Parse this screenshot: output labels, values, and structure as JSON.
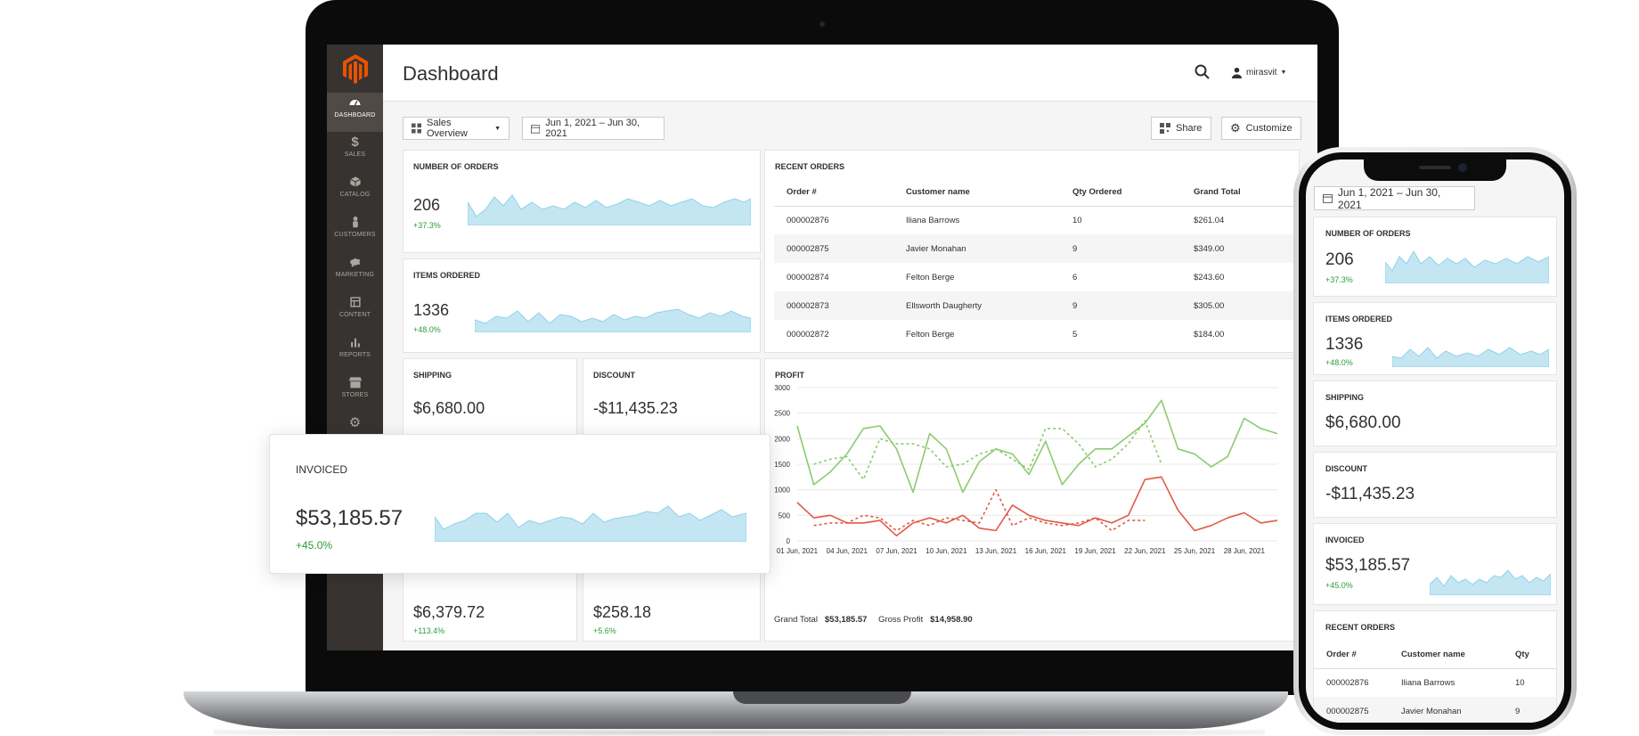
{
  "dashboard": {
    "page_title": "Dashboard",
    "user": "mirasvit",
    "nav": [
      {
        "label": "DASHBOARD",
        "icon": "dashboard-icon"
      },
      {
        "label": "SALES",
        "icon": "dollar-icon"
      },
      {
        "label": "CATALOG",
        "icon": "cube-icon"
      },
      {
        "label": "CUSTOMERS",
        "icon": "person-icon"
      },
      {
        "label": "MARKETING",
        "icon": "megaphone-icon"
      },
      {
        "label": "CONTENT",
        "icon": "layout-icon"
      },
      {
        "label": "REPORTS",
        "icon": "bar-chart-icon"
      },
      {
        "label": "STORES",
        "icon": "store-icon"
      }
    ],
    "toolbar": {
      "board_select": "Sales Overview",
      "date_range": "Jun 1, 2021 – Jun 30, 2021",
      "share_label": "Share",
      "customize_label": "Customize"
    },
    "widgets": {
      "orders": {
        "title": "NUMBER OF ORDERS",
        "value": "206",
        "delta": "+37.3%"
      },
      "items": {
        "title": "ITEMS ORDERED",
        "value": "1336",
        "delta": "+48.0%"
      },
      "shipping": {
        "title": "SHIPPING",
        "value": "$6,680.00"
      },
      "discount": {
        "title": "DISCOUNT",
        "value": "-$11,435.23"
      },
      "tax": {
        "value": "$6,379.72",
        "delta": "+113.4%"
      },
      "refunded": {
        "value": "$258.18",
        "delta": "+5.6%"
      },
      "invoiced": {
        "title": "INVOICED",
        "value": "$53,185.57",
        "delta": "+45.0%"
      }
    },
    "recent_orders": {
      "title": "RECENT ORDERS",
      "columns": [
        "Order #",
        "Customer name",
        "Qty Ordered",
        "Grand Total"
      ],
      "rows": [
        [
          "000002876",
          "Iliana Barrows",
          "10",
          "$261.04"
        ],
        [
          "000002875",
          "Javier Monahan",
          "9",
          "$349.00"
        ],
        [
          "000002874",
          "Felton Berge",
          "6",
          "$243.60"
        ],
        [
          "000002873",
          "Ellsworth Daugherty",
          "9",
          "$305.00"
        ],
        [
          "000002872",
          "Felton Berge",
          "5",
          "$184.00"
        ]
      ]
    },
    "profit": {
      "title": "PROFIT",
      "grand_total_label": "Grand Total",
      "grand_total_value": "$53,185.57",
      "gross_profit_label": "Gross Profit",
      "gross_profit_value": "$14,958.90"
    }
  },
  "phone": {
    "date_range": "Jun 1, 2021 – Jun 30, 2021",
    "orders": {
      "title": "NUMBER OF ORDERS",
      "value": "206",
      "delta": "+37.3%"
    },
    "items": {
      "title": "ITEMS ORDERED",
      "value": "1336",
      "delta": "+48.0%"
    },
    "shipping": {
      "title": "SHIPPING",
      "value": "$6,680.00"
    },
    "discount": {
      "title": "DISCOUNT",
      "value": "-$11,435.23"
    },
    "invoiced": {
      "title": "INVOICED",
      "value": "$53,185.57",
      "delta": "+45.0%"
    },
    "recent_orders": {
      "title": "RECENT ORDERS",
      "columns": [
        "Order #",
        "Customer name",
        "Qty"
      ],
      "rows": [
        [
          "000002876",
          "Iliana Barrows",
          "10"
        ],
        [
          "000002875",
          "Javier Monahan",
          "9"
        ]
      ]
    }
  },
  "colors": {
    "sidebar": "#373330",
    "sidebar_active": "#514943",
    "brand_orange": "#eb5202",
    "spark_fill": "#c4e6f3",
    "spark_line": "#8fd0ea",
    "positive": "#2d9c3a",
    "series_green": "#8ccb6e",
    "series_red": "#e05a47"
  },
  "chart_data": {
    "type": "line",
    "title": "PROFIT",
    "x": [
      "01 Jun, 2021",
      "02 Jun, 2021",
      "03 Jun, 2021",
      "04 Jun, 2021",
      "05 Jun, 2021",
      "06 Jun, 2021",
      "07 Jun, 2021",
      "08 Jun, 2021",
      "09 Jun, 2021",
      "10 Jun, 2021",
      "11 Jun, 2021",
      "12 Jun, 2021",
      "13 Jun, 2021",
      "14 Jun, 2021",
      "15 Jun, 2021",
      "16 Jun, 2021",
      "17 Jun, 2021",
      "18 Jun, 2021",
      "19 Jun, 2021",
      "20 Jun, 2021",
      "21 Jun, 2021",
      "22 Jun, 2021",
      "23 Jun, 2021",
      "24 Jun, 2021",
      "25 Jun, 2021",
      "26 Jun, 2021",
      "27 Jun, 2021",
      "28 Jun, 2021",
      "29 Jun, 2021",
      "30 Jun, 2021"
    ],
    "xticks": [
      "01 Jun, 2021",
      "04 Jun, 2021",
      "07 Jun, 2021",
      "10 Jun, 2021",
      "13 Jun, 2021",
      "16 Jun, 2021",
      "19 Jun, 2021",
      "22 Jun, 2021",
      "25 Jun, 2021",
      "28 Jun, 2021"
    ],
    "yticks": [
      "0",
      "500",
      "1000",
      "1500",
      "2000",
      "2500",
      "3000"
    ],
    "ylim": [
      0,
      3000
    ],
    "grid": true,
    "series": [
      {
        "color": "#8ccb6e",
        "style": "solid",
        "values": [
          2250,
          1100,
          1350,
          1700,
          2200,
          2250,
          1800,
          950,
          2100,
          1800,
          950,
          1550,
          1800,
          1700,
          1300,
          1950,
          1100,
          1500,
          1800,
          1800,
          2050,
          2300,
          2750,
          1800,
          1700,
          1450,
          1650,
          2400,
          2200,
          2100
        ]
      },
      {
        "color": "#8ccb6e",
        "style": "dashed",
        "values": [
          null,
          1500,
          1600,
          1650,
          1200,
          2000,
          1900,
          1900,
          1800,
          1450,
          1500,
          1700,
          1800,
          1600,
          1400,
          2200,
          2200,
          1900,
          1450,
          1600,
          1900,
          2350,
          1500,
          null,
          null,
          null,
          null,
          null,
          null,
          null
        ]
      },
      {
        "color": "#e05a47",
        "style": "solid",
        "values": [
          750,
          450,
          500,
          350,
          350,
          400,
          100,
          350,
          450,
          350,
          500,
          250,
          200,
          700,
          500,
          400,
          350,
          300,
          450,
          350,
          500,
          1200,
          1250,
          600,
          200,
          300,
          450,
          550,
          350,
          400
        ]
      },
      {
        "color": "#e05a47",
        "style": "dashed",
        "values": [
          null,
          300,
          350,
          350,
          500,
          450,
          200,
          400,
          300,
          450,
          400,
          350,
          1000,
          300,
          450,
          350,
          300,
          350,
          450,
          200,
          400,
          400,
          null,
          null,
          null,
          null,
          null,
          null,
          null,
          null
        ]
      }
    ]
  }
}
